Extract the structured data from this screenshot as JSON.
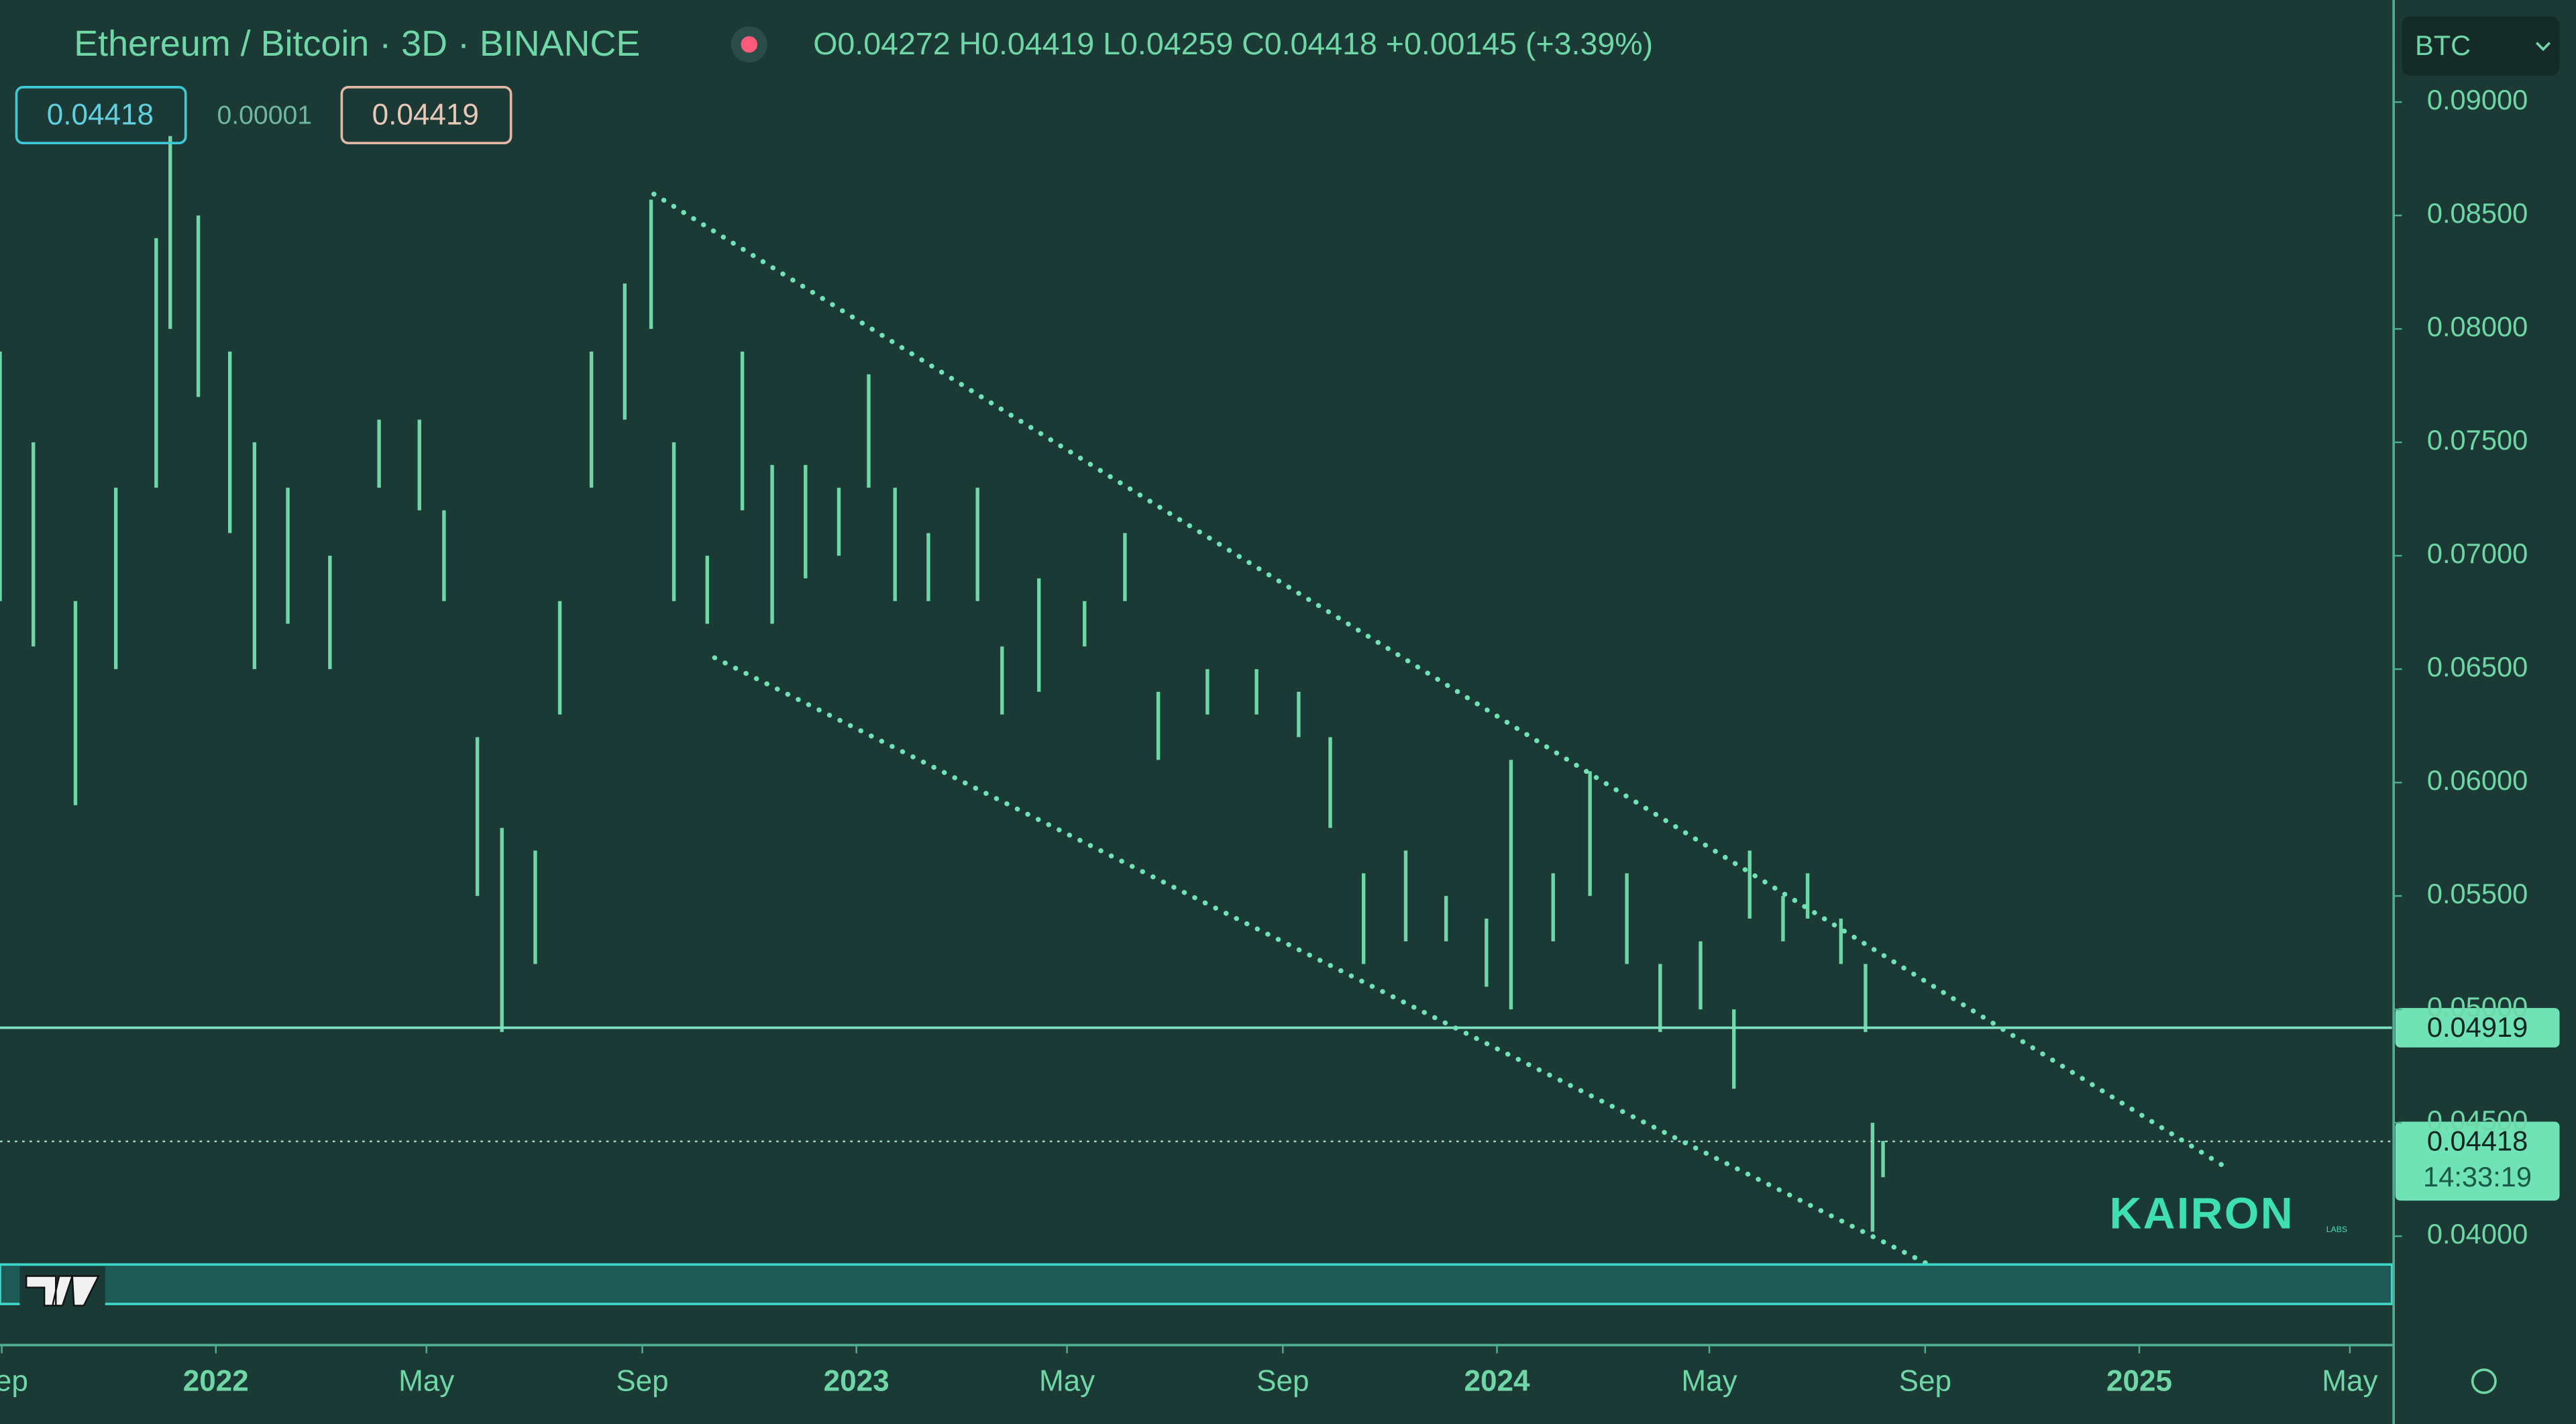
{
  "header": {
    "title": "Ethereum / Bitcoin · 3D · BINANCE",
    "ohlc": "O0.04272 H0.04419 L0.04259 C0.04418 +0.00145 (+3.39%)",
    "bid": "0.04418",
    "spread": "0.00001",
    "ask": "0.04419",
    "currency": "BTC",
    "countdown": "14:33:19",
    "watermark": "KAIRON",
    "watermark_sub": "LABS"
  },
  "chart_data": {
    "type": "range-bar",
    "color": "#6fd6a6",
    "x": [
      "2021-08-31",
      "2021-09-19",
      "2021-10-13",
      "2021-11-05",
      "2021-11-28",
      "2021-12-06",
      "2021-12-22",
      "2022-01-09",
      "2022-01-23",
      "2022-02-11",
      "2022-03-07",
      "2022-04-04",
      "2022-04-27",
      "2022-05-11",
      "2022-05-30",
      "2022-06-13",
      "2022-07-02",
      "2022-07-16",
      "2022-08-03",
      "2022-08-22",
      "2022-09-06",
      "2022-09-19",
      "2022-10-08",
      "2022-10-28",
      "2022-11-14",
      "2022-12-03",
      "2022-12-22",
      "2023-01-08",
      "2023-01-23",
      "2023-02-11",
      "2023-03-11",
      "2023-03-25",
      "2023-04-15",
      "2023-05-11",
      "2023-06-03",
      "2023-06-22",
      "2023-07-20",
      "2023-08-17",
      "2023-09-10",
      "2023-09-28",
      "2023-10-17",
      "2023-11-10",
      "2023-12-03",
      "2023-12-26",
      "2024-01-09",
      "2024-02-02",
      "2024-02-23",
      "2024-03-15",
      "2024-04-03",
      "2024-04-26",
      "2024-05-15",
      "2024-05-24",
      "2024-06-12",
      "2024-06-26",
      "2024-07-15",
      "2024-07-29",
      "2024-08-02",
      "2024-08-08"
    ],
    "low": [
      0.068,
      0.066,
      0.059,
      0.065,
      0.073,
      0.08,
      0.077,
      0.071,
      0.065,
      0.067,
      0.065,
      0.073,
      0.072,
      0.068,
      0.055,
      0.049,
      0.052,
      0.063,
      0.073,
      0.076,
      0.08,
      0.068,
      0.067,
      0.072,
      0.067,
      0.069,
      0.07,
      0.073,
      0.068,
      0.068,
      0.068,
      0.063,
      0.064,
      0.066,
      0.068,
      0.061,
      0.063,
      0.063,
      0.062,
      0.058,
      0.052,
      0.053,
      0.053,
      0.051,
      0.05,
      0.053,
      0.055,
      0.052,
      0.049,
      0.05,
      0.0465,
      0.054,
      0.053,
      0.054,
      0.052,
      0.049,
      0.0402,
      0.0426
    ],
    "high": [
      0.079,
      0.075,
      0.068,
      0.073,
      0.084,
      0.0885,
      0.085,
      0.079,
      0.075,
      0.073,
      0.07,
      0.076,
      0.076,
      0.072,
      0.062,
      0.058,
      0.057,
      0.068,
      0.079,
      0.082,
      0.0857,
      0.075,
      0.07,
      0.079,
      0.074,
      0.074,
      0.073,
      0.078,
      0.073,
      0.071,
      0.073,
      0.066,
      0.069,
      0.068,
      0.071,
      0.064,
      0.065,
      0.065,
      0.064,
      0.062,
      0.056,
      0.057,
      0.055,
      0.054,
      0.061,
      0.056,
      0.0605,
      0.056,
      0.052,
      0.053,
      0.05,
      0.057,
      0.055,
      0.056,
      0.054,
      0.052,
      0.045,
      0.0442
    ],
    "xlim": [
      "2021-08-31",
      "2025-05-25"
    ],
    "xticks": [
      {
        "value": "2021-09-01",
        "label": "Sep"
      },
      {
        "value": "2022-01-01",
        "label": "2022"
      },
      {
        "value": "2022-05-01",
        "label": "May"
      },
      {
        "value": "2022-09-01",
        "label": "Sep"
      },
      {
        "value": "2023-01-01",
        "label": "2023"
      },
      {
        "value": "2023-05-01",
        "label": "May"
      },
      {
        "value": "2023-09-01",
        "label": "Sep"
      },
      {
        "value": "2024-01-01",
        "label": "2024"
      },
      {
        "value": "2024-05-01",
        "label": "May"
      },
      {
        "value": "2024-09-01",
        "label": "Sep"
      },
      {
        "value": "2025-01-01",
        "label": "2025"
      },
      {
        "value": "2025-05-01",
        "label": "May"
      }
    ],
    "ylim": [
      0.0352,
      0.0945
    ],
    "yticks": [
      {
        "value": 0.04,
        "label": "0.04000"
      },
      {
        "value": 0.045,
        "label": "0.04500"
      },
      {
        "value": 0.05,
        "label": "0.05000"
      },
      {
        "value": 0.055,
        "label": "0.05500"
      },
      {
        "value": 0.06,
        "label": "0.06000"
      },
      {
        "value": 0.065,
        "label": "0.06500"
      },
      {
        "value": 0.07,
        "label": "0.07000"
      },
      {
        "value": 0.075,
        "label": "0.07500"
      },
      {
        "value": 0.08,
        "label": "0.08000"
      },
      {
        "value": 0.085,
        "label": "0.08500"
      },
      {
        "value": 0.09,
        "label": "0.09000"
      }
    ],
    "hlines": [
      {
        "value": 0.04919,
        "style": "solid"
      },
      {
        "value": 0.04418,
        "style": "dotted"
      }
    ]
  }
}
